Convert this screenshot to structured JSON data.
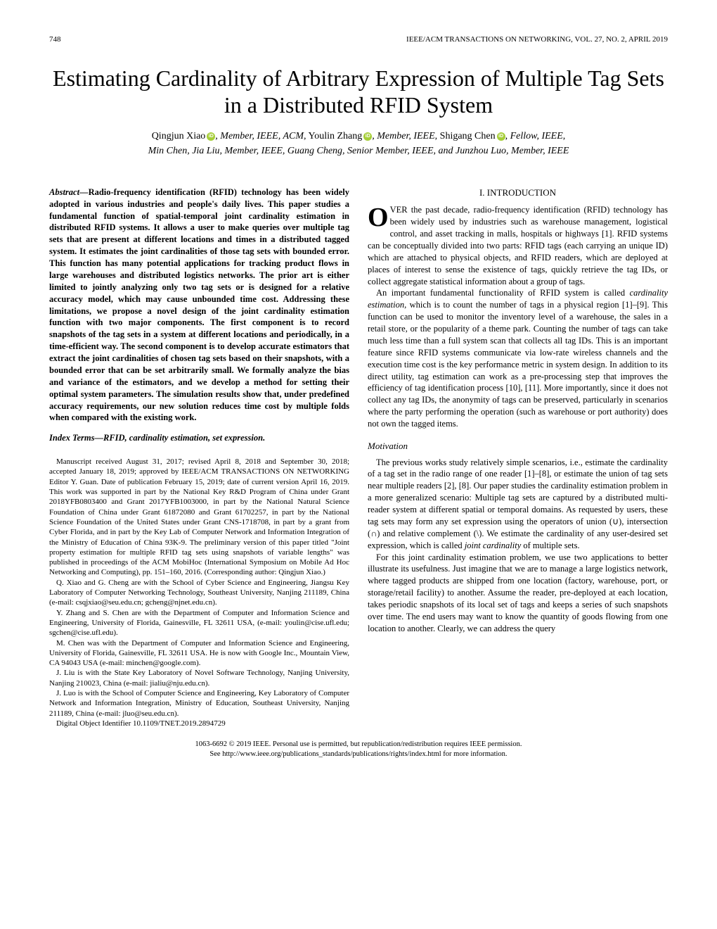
{
  "header": {
    "page_number": "748",
    "journal_info": "IEEE/ACM TRANSACTIONS ON NETWORKING, VOL. 27, NO. 2, APRIL 2019"
  },
  "title": "Estimating Cardinality of Arbitrary Expression of Multiple Tag Sets in a Distributed RFID System",
  "authors": {
    "line1_a": "Qingjun Xiao",
    "line1_b": ", Member, IEEE, ACM",
    "line1_c": ", Youlin Zhang",
    "line1_d": ", Member, IEEE",
    "line1_e": ", Shigang Chen",
    "line1_f": ", Fellow, IEEE",
    "line1_g": ",",
    "line2": "Min Chen, Jia Liu, Member, IEEE, Guang Cheng, Senior Member, IEEE, and Junzhou Luo, Member, IEEE"
  },
  "abstract": {
    "heading": "Abstract—",
    "body": "Radio-frequency identification (RFID) technology has been widely adopted in various industries and people's daily lives. This paper studies a fundamental function of spatial-temporal joint cardinality estimation in distributed RFID systems. It allows a user to make queries over multiple tag sets that are present at different locations and times in a distributed tagged system. It estimates the joint cardinalities of those tag sets with bounded error. This function has many potential applications for tracking product flows in large warehouses and distributed logistics networks. The prior art is either limited to jointly analyzing only two tag sets or is designed for a relative accuracy model, which may cause unbounded time cost. Addressing these limitations, we propose a novel design of the joint cardinality estimation function with two major components. The first component is to record snapshots of the tag sets in a system at different locations and periodically, in a time-efficient way. The second component is to develop accurate estimators that extract the joint cardinalities of chosen tag sets based on their snapshots, with a bounded error that can be set arbitrarily small. We formally analyze the bias and variance of the estimators, and we develop a method for setting their optimal system parameters. The simulation results show that, under predefined accuracy requirements, our new solution reduces time cost by multiple folds when compared with the existing work."
  },
  "index_terms": {
    "heading": "Index Terms—",
    "body": "RFID, cardinality estimation, set expression."
  },
  "manuscript": {
    "p1": "Manuscript received August 31, 2017; revised April 8, 2018 and September 30, 2018; accepted January 18, 2019; approved by IEEE/ACM TRANSACTIONS ON NETWORKING Editor Y. Guan. Date of publication February 15, 2019; date of current version April 16, 2019. This work was supported in part by the National Key R&D Program of China under Grant 2018YFB0803400 and Grant 2017YFB1003000, in part by the National Natural Science Foundation of China under Grant 61872080 and Grant 61702257, in part by the National Science Foundation of the United States under Grant CNS-1718708, in part by a grant from Cyber Florida, and in part by the Key Lab of Computer Network and Information Integration of the Ministry of Education of China 93K-9. The preliminary version of this paper titled \"Joint property estimation for multiple RFID tag sets using snapshots of variable lengths\" was published in proceedings of the ACM MobiHoc (International Symposium on Mobile Ad Hoc Networking and Computing), pp. 151–160, 2016. (Corresponding author: Qingjun Xiao.)",
    "p2": "Q. Xiao and G. Cheng are with the School of Cyber Science and Engineering, Jiangsu Key Laboratory of Computer Networking Technology, Southeast University, Nanjing 211189, China (e-mail: csqjxiao@seu.edu.cn; gcheng@njnet.edu.cn).",
    "p3": "Y. Zhang and S. Chen are with the Department of Computer and Information Science and Engineering, University of Florida, Gainesville, FL 32611 USA, (e-mail: youlin@cise.ufl.edu; sgchen@cise.ufl.edu).",
    "p4": "M. Chen was with the Department of Computer and Information Science and Engineering, University of Florida, Gainesville, FL 32611 USA. He is now with Google Inc., Mountain View, CA 94043 USA (e-mail: minchen@google.com).",
    "p5": "J. Liu is with the State Key Laboratory of Novel Software Technology, Nanjing University, Nanjing 210023, China (e-mail: jialiu@nju.edu.cn).",
    "p6": "J. Luo is with the School of Computer Science and Engineering, Key Laboratory of Computer Network and Information Integration, Ministry of Education, Southeast University, Nanjing 211189, China (e-mail: jluo@seu.edu.cn).",
    "p7": "Digital Object Identifier 10.1109/TNET.2019.2894729"
  },
  "intro": {
    "heading": "I. INTRODUCTION",
    "p1_first": "O",
    "p1": "VER the past decade, radio-frequency identification (RFID) technology has been widely used by industries such as warehouse management, logistical control, and asset tracking in malls, hospitals or highways [1]. RFID systems can be conceptually divided into two parts: RFID tags (each carrying an unique ID) which are attached to physical objects, and RFID readers, which are deployed at places of interest to sense the existence of tags, quickly retrieve the tag IDs, or collect aggregate statistical information about a group of tags.",
    "p2a": "An important fundamental functionality of RFID system is called ",
    "p2em": "cardinality estimation",
    "p2b": ", which is to count the number of tags in a physical region [1]–[9]. This function can be used to monitor the inventory level of a warehouse, the sales in a retail store, or the popularity of a theme park. Counting the number of tags can take much less time than a full system scan that collects all tag IDs. This is an important feature since RFID systems communicate via low-rate wireless channels and the execution time cost is the key performance metric in system design. In addition to its direct utility, tag estimation can work as a pre-processing step that improves the efficiency of tag identification process [10], [11]. More importantly, since it does not collect any tag IDs, the anonymity of tags can be preserved, particularly in scenarios where the party performing the operation (such as warehouse or port authority) does not own the tagged items."
  },
  "motivation": {
    "heading": "Motivation",
    "p1a": "The previous works study relatively simple scenarios, i.e., estimate the cardinality of a tag set in the radio range of one reader [1]–[8], or estimate the union of tag sets near multiple readers [2], [8]. Our paper studies the cardinality estimation problem in a more generalized scenario: Multiple tag sets are captured by a distributed multi-reader system at different spatial or temporal domains. As requested by users, these tag sets may form any set expression using the operators of union (∪), intersection (∩) and relative complement (\\). We estimate the cardinality of any user-desired set expression, which is called ",
    "p1em": "joint cardinality",
    "p1b": " of multiple sets.",
    "p2": "For this joint cardinality estimation problem, we use two applications to better illustrate its usefulness. Just imagine that we are to manage a large logistics network, where tagged products are shipped from one location (factory, warehouse, port, or storage/retail facility) to another. Assume the reader, pre-deployed at each location, takes periodic snapshots of its local set of tags and keeps a series of such snapshots over time. The end users may want to know the quantity of goods flowing from one location to another. Clearly, we can address the query"
  },
  "footer": {
    "line1": "1063-6692 © 2019 IEEE. Personal use is permitted, but republication/redistribution requires IEEE permission.",
    "line2": "See http://www.ieee.org/publications_standards/publications/rights/index.html for more information."
  }
}
